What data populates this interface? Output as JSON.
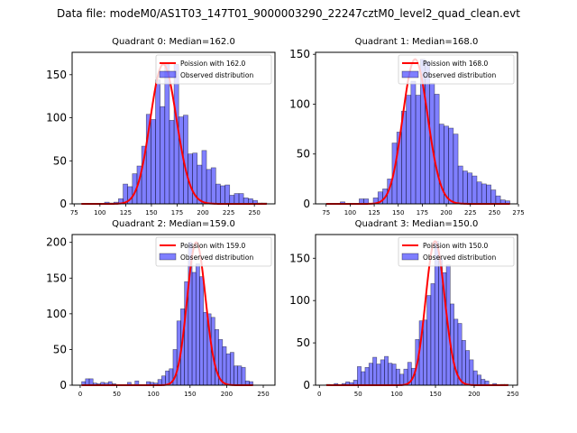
{
  "suptitle": "Data file: modeM0/AS1T03_147T01_9000003290_22247cztM0_level2_quad_clean.evt",
  "chart_data": [
    {
      "type": "bar",
      "title": "Quadrant 0: Median=162.0",
      "median": 162.0,
      "xlim": [
        73,
        270
      ],
      "ylim": [
        0,
        176
      ],
      "xticks": [
        75,
        100,
        125,
        150,
        175,
        200,
        225,
        250
      ],
      "yticks": [
        0,
        50,
        100,
        150
      ],
      "bin_width": 4.5,
      "bins_start": [
        82,
        86.5,
        91,
        95.5,
        100,
        104.5,
        109,
        113.5,
        118,
        122.5,
        127,
        131.5,
        136,
        140.5,
        145,
        149.5,
        154,
        158.5,
        163,
        167.5,
        172,
        176.5,
        181,
        185.5,
        190,
        194.5,
        199,
        203.5,
        208,
        212.5,
        217,
        221.5,
        226,
        230.5,
        235,
        239.5,
        244,
        248.5,
        253,
        257.5
      ],
      "counts": [
        0,
        0,
        0,
        0,
        0,
        2,
        1,
        2,
        6,
        23,
        20,
        35,
        44,
        67,
        104,
        98,
        144,
        113,
        162,
        97,
        162,
        101,
        103,
        58,
        59,
        45,
        62,
        40,
        42,
        23,
        21,
        22,
        10,
        12,
        12,
        7,
        6,
        4,
        1,
        1
      ],
      "poisson_lambda": 162.0,
      "legend": [
        "Poission with 162.0",
        "Observed distribution"
      ],
      "legend_position": "upper right"
    },
    {
      "type": "bar",
      "title": "Quadrant 1: Median=168.0",
      "median": 168.0,
      "xlim": [
        64,
        274
      ],
      "ylim": [
        0,
        152
      ],
      "xticks": [
        75,
        100,
        125,
        150,
        175,
        200,
        225,
        250,
        275
      ],
      "yticks": [
        0,
        50,
        100,
        150
      ],
      "bin_width": 4.9,
      "bins_start": [
        75,
        79.9,
        84.8,
        89.7,
        94.6,
        99.5,
        104.4,
        109.3,
        114.2,
        119.1,
        124,
        128.9,
        133.8,
        138.7,
        143.6,
        148.5,
        153.4,
        158.3,
        163.2,
        168.1,
        173,
        177.9,
        182.8,
        187.7,
        192.6,
        197.5,
        202.4,
        207.3,
        212.2,
        217.1,
        222,
        226.9,
        231.8,
        236.7,
        241.6,
        246.5,
        251.4,
        256.3,
        261.2
      ],
      "counts": [
        0,
        0,
        0,
        2,
        0,
        0,
        0,
        5,
        5,
        0,
        6,
        12,
        15,
        25,
        61,
        72,
        93,
        109,
        123,
        109,
        145,
        143,
        121,
        110,
        80,
        78,
        76,
        70,
        38,
        33,
        31,
        28,
        22,
        20,
        19,
        14,
        8,
        4,
        3
      ],
      "poisson_lambda": 168.0,
      "legend": [
        "Poission with 168.0",
        "Observed distribution"
      ],
      "legend_position": "upper right"
    },
    {
      "type": "bar",
      "title": "Quadrant 2: Median=159.0",
      "median": 159.0,
      "xlim": [
        -11,
        266
      ],
      "ylim": [
        0,
        211
      ],
      "xticks": [
        0,
        50,
        100,
        150,
        200,
        250
      ],
      "yticks": [
        0,
        50,
        100,
        150,
        200
      ],
      "bin_width": 5.2,
      "bins_start": [
        2,
        7.2,
        12.4,
        17.6,
        22.8,
        28,
        33.2,
        38.4,
        43.6,
        48.8,
        54,
        59.2,
        64.4,
        69.6,
        74.8,
        80,
        85.2,
        90.4,
        95.6,
        100.8,
        106,
        111.2,
        116.4,
        121.6,
        126.8,
        132,
        137.2,
        142.4,
        147.6,
        152.8,
        158,
        163.2,
        168.4,
        173.6,
        178.8,
        184,
        189.2,
        194.4,
        199.6,
        204.8,
        210,
        215.2,
        220.4,
        225.6,
        230.8
      ],
      "counts": [
        5,
        9,
        9,
        3,
        2,
        4,
        3,
        5,
        2,
        0,
        0,
        0,
        4,
        1,
        6,
        0,
        0,
        5,
        4,
        3,
        8,
        13,
        20,
        23,
        50,
        90,
        107,
        145,
        200,
        158,
        170,
        152,
        102,
        100,
        95,
        78,
        64,
        54,
        44,
        46,
        27,
        27,
        25,
        6,
        5
      ],
      "poisson_lambda": 159.0,
      "legend": [
        "Poission with 159.0",
        "Observed distribution"
      ],
      "legend_position": "upper right"
    },
    {
      "type": "bar",
      "title": "Quadrant 3: Median=150.0",
      "median": 150.0,
      "xlim": [
        -5,
        256
      ],
      "ylim": [
        0,
        178
      ],
      "xticks": [
        0,
        50,
        100,
        150,
        200,
        250
      ],
      "yticks": [
        0,
        50,
        100,
        150
      ],
      "bin_width": 5.0,
      "bins_start": [
        9,
        14,
        19,
        24,
        29,
        34,
        39,
        44,
        49,
        54,
        59,
        64,
        69,
        74,
        79,
        84,
        89,
        94,
        99,
        104,
        109,
        114,
        119,
        124,
        129,
        134,
        139,
        144,
        149,
        154,
        159,
        164,
        169,
        174,
        179,
        184,
        189,
        194,
        199,
        204,
        209,
        214,
        219,
        224,
        229,
        234,
        239
      ],
      "counts": [
        1,
        0,
        2,
        0,
        2,
        4,
        3,
        6,
        22,
        16,
        21,
        26,
        33,
        25,
        30,
        34,
        26,
        25,
        19,
        13,
        19,
        27,
        20,
        54,
        76,
        77,
        106,
        120,
        170,
        150,
        133,
        142,
        96,
        78,
        73,
        53,
        41,
        30,
        17,
        12,
        7,
        5,
        0,
        2,
        0,
        1,
        1
      ],
      "poisson_lambda": 150.0,
      "legend": [
        "Poission with 150.0",
        "Observed distribution"
      ],
      "legend_position": "upper right"
    }
  ]
}
